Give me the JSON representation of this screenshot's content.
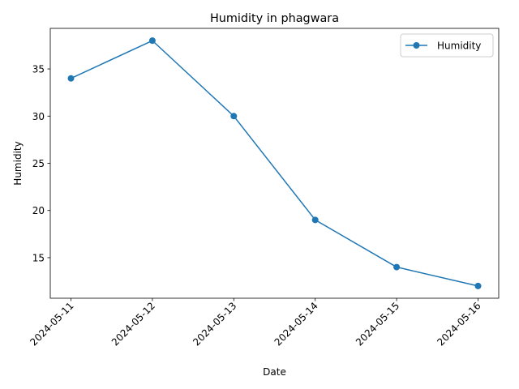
{
  "chart_data": {
    "type": "line",
    "title": "Humidity in phagwara",
    "xlabel": "Date",
    "ylabel": "Humidity",
    "x": [
      "2024-05-11",
      "2024-05-12",
      "2024-05-13",
      "2024-05-14",
      "2024-05-15",
      "2024-05-16"
    ],
    "series": [
      {
        "name": "Humidity",
        "values": [
          34,
          38,
          30,
          19,
          14,
          12
        ],
        "color": "#1f77b4",
        "marker": "circle"
      }
    ],
    "ylim": [
      10.7,
      39.3
    ],
    "yticks": [
      15,
      20,
      25,
      30,
      35
    ],
    "grid": false,
    "legend": "top-right"
  }
}
